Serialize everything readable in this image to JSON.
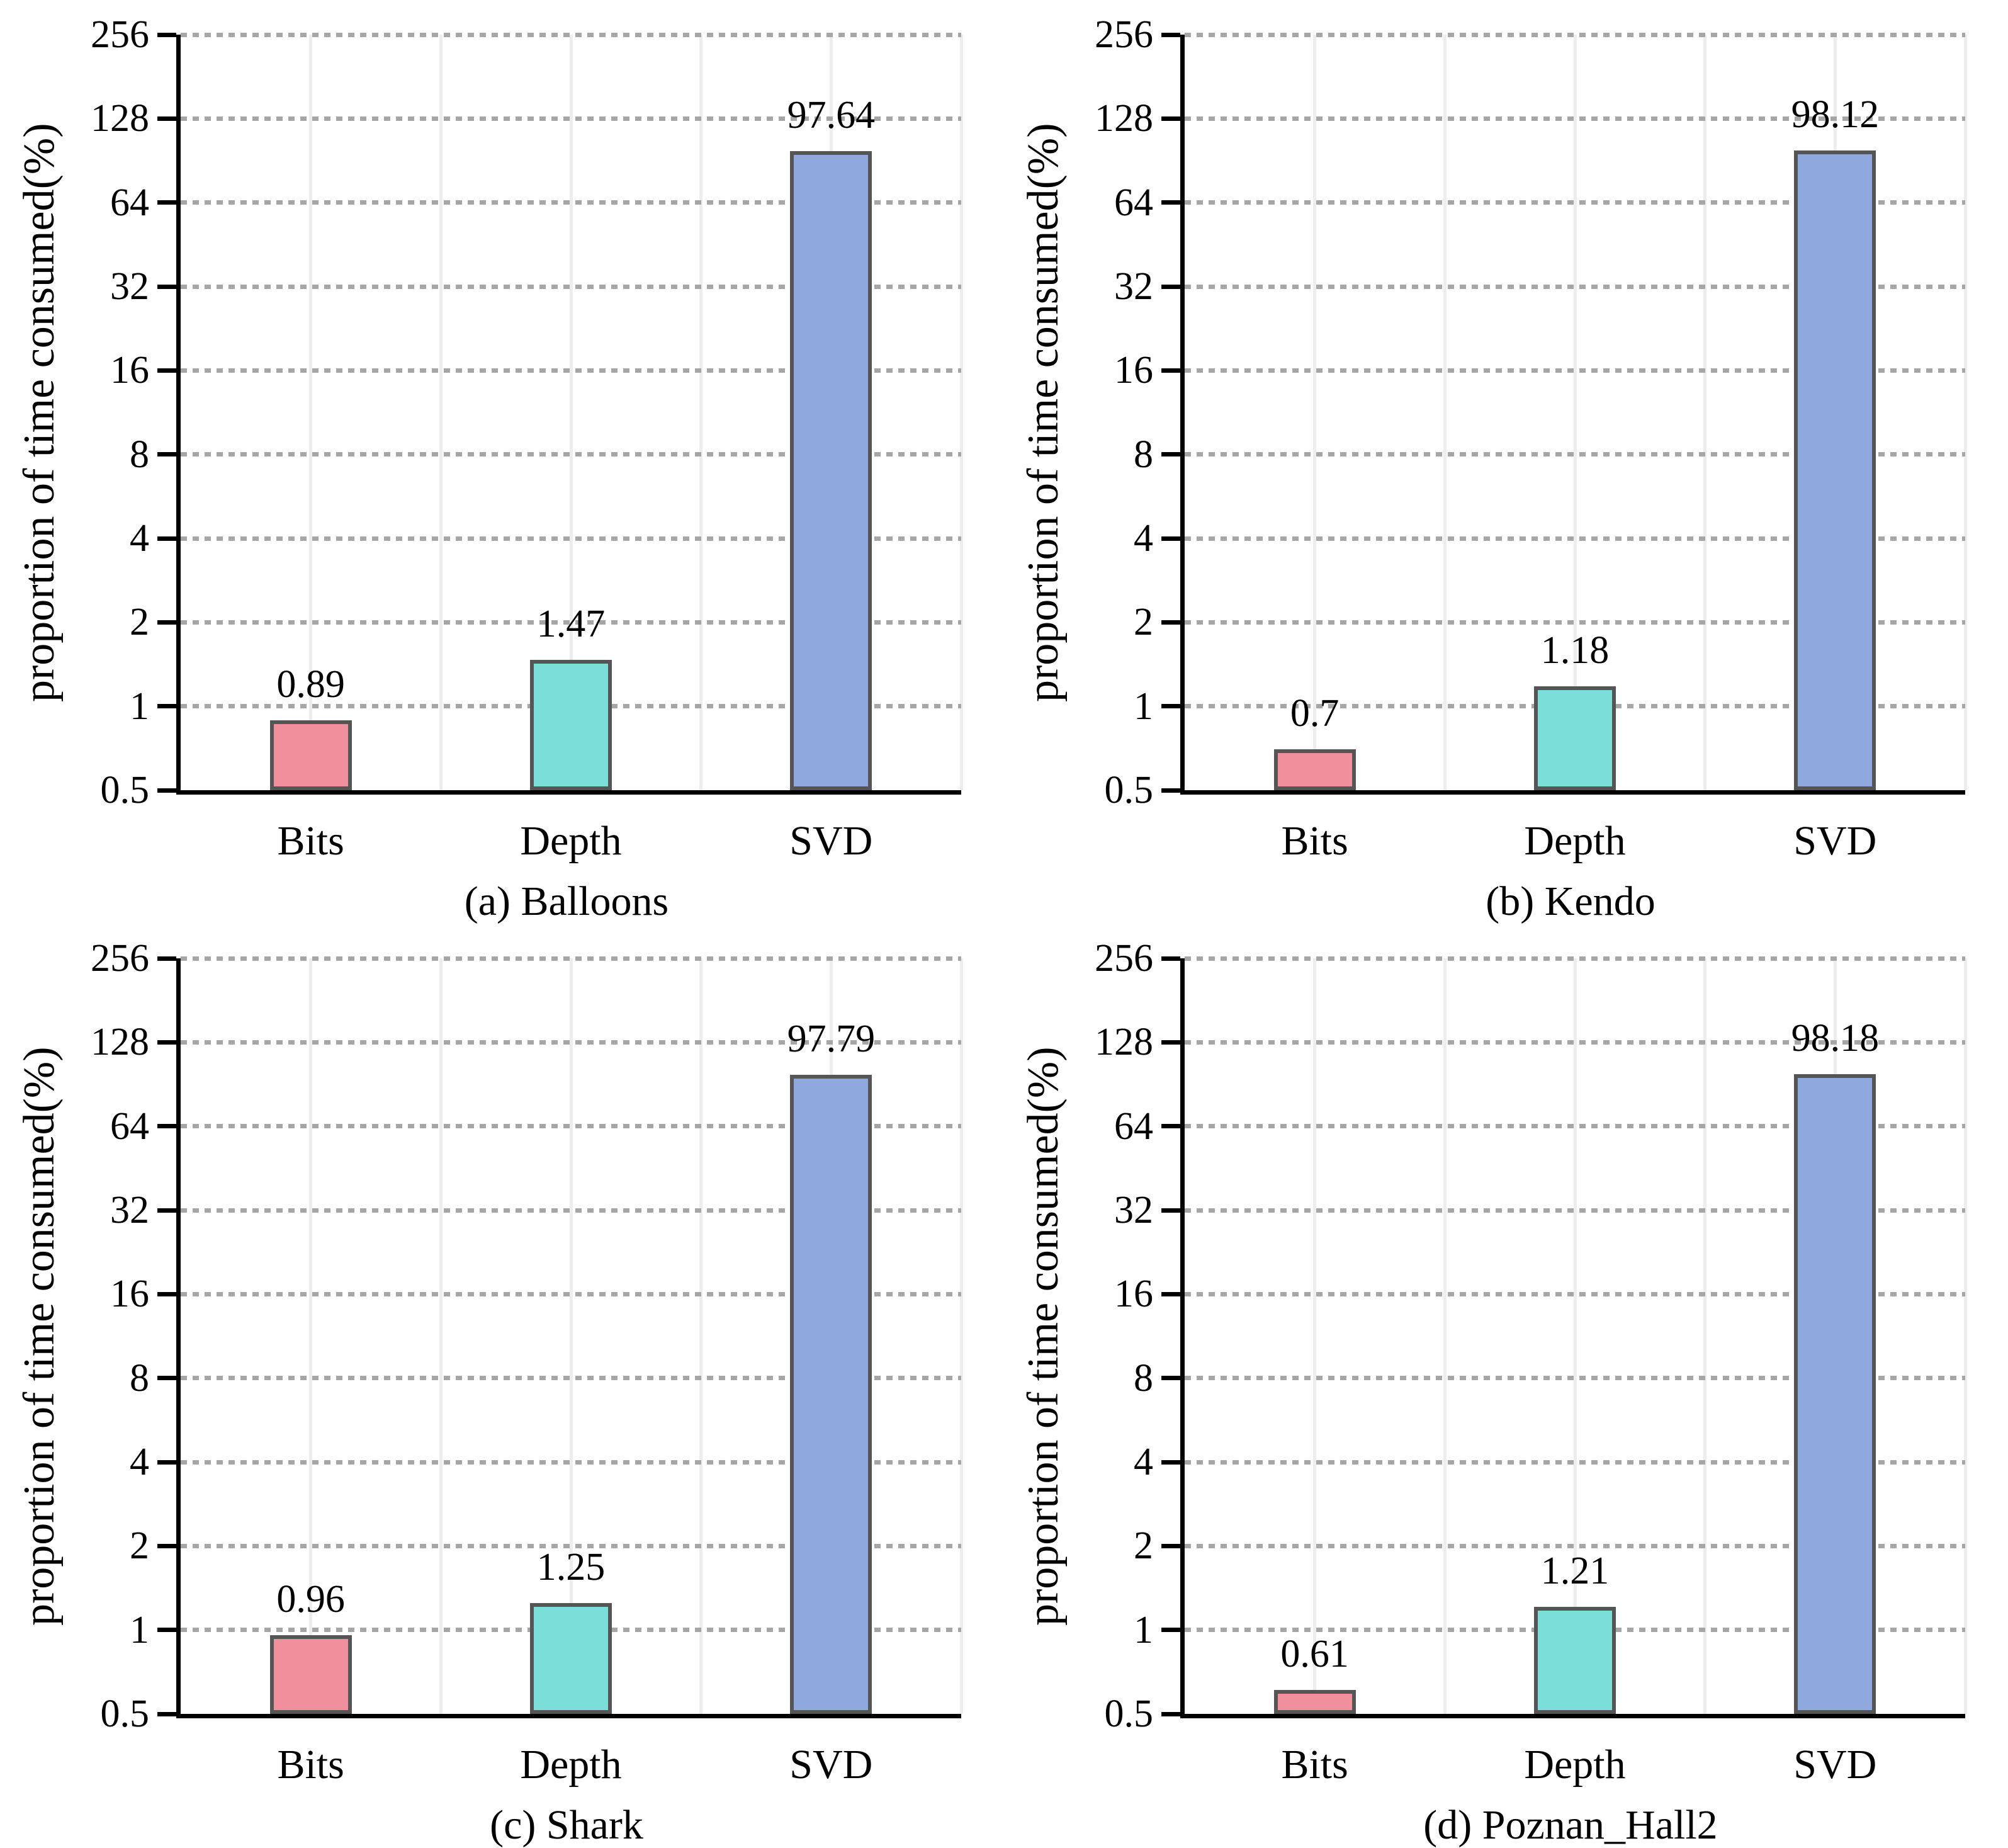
{
  "figure": {
    "background": "#ffffff",
    "text_color": "#000000",
    "axis_color": "#000000",
    "grid_h_color": "#A6A6A6",
    "grid_v_color": "#EDEDED",
    "bar_border_color": "#555555",
    "bar_colors": [
      "#F0909C",
      "#7CDED8",
      "#8FA9DF"
    ]
  },
  "axes": {
    "yticks": [
      "256",
      "128",
      "64",
      "32",
      "16",
      "8",
      "4",
      "2",
      "1",
      "0.5"
    ],
    "ymin": 0.5,
    "ymax": 256,
    "scale": "log2",
    "grid": true
  },
  "chart_data": [
    {
      "type": "bar",
      "title": "(a) Balloons",
      "ylabel": "proportion of time consumed(%)",
      "categories": [
        "Bits",
        "Depth",
        "SVD"
      ],
      "values": [
        0.89,
        1.47,
        97.64
      ],
      "value_labels": [
        "0.89",
        "1.47",
        "97.64"
      ],
      "ylim": [
        0.5,
        256
      ]
    },
    {
      "type": "bar",
      "title": "(b) Kendo",
      "ylabel": "proportion of time consumed(%)",
      "categories": [
        "Bits",
        "Depth",
        "SVD"
      ],
      "values": [
        0.7,
        1.18,
        98.12
      ],
      "value_labels": [
        "0.7",
        "1.18",
        "98.12"
      ],
      "ylim": [
        0.5,
        256
      ]
    },
    {
      "type": "bar",
      "title": "(c) Shark",
      "ylabel": "proportion of time consumed(%)",
      "categories": [
        "Bits",
        "Depth",
        "SVD"
      ],
      "values": [
        0.96,
        1.25,
        97.79
      ],
      "value_labels": [
        "0.96",
        "1.25",
        "97.79"
      ],
      "ylim": [
        0.5,
        256
      ]
    },
    {
      "type": "bar",
      "title": "(d) Poznan_Hall2",
      "ylabel": "proportion of time consumed(%)",
      "categories": [
        "Bits",
        "Depth",
        "SVD"
      ],
      "values": [
        0.61,
        1.21,
        98.18
      ],
      "value_labels": [
        "0.61",
        "1.21",
        "98.18"
      ],
      "ylim": [
        0.5,
        256
      ]
    }
  ]
}
